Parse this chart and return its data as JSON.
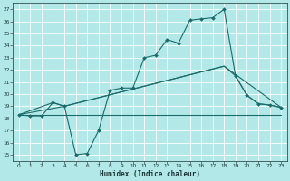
{
  "xlabel": "Humidex (Indice chaleur)",
  "bg_color": "#b3e8e8",
  "grid_color": "#ffffff",
  "line_color": "#1a6b6b",
  "xlim": [
    -0.5,
    23.5
  ],
  "ylim": [
    14.5,
    27.5
  ],
  "xticks": [
    0,
    1,
    2,
    3,
    4,
    5,
    6,
    7,
    8,
    9,
    10,
    11,
    12,
    13,
    14,
    15,
    16,
    17,
    18,
    19,
    20,
    21,
    22,
    23
  ],
  "yticks": [
    15,
    16,
    17,
    18,
    19,
    20,
    21,
    22,
    23,
    24,
    25,
    26,
    27
  ],
  "line1_x": [
    0,
    1,
    2,
    3,
    4,
    5,
    6,
    7,
    8,
    9,
    10,
    11,
    12,
    13,
    14,
    15,
    16,
    17,
    18,
    19,
    20,
    21,
    22,
    23
  ],
  "line1_y": [
    18.3,
    18.2,
    18.2,
    19.3,
    19.0,
    15.0,
    15.1,
    17.0,
    20.3,
    20.5,
    20.5,
    23.0,
    23.2,
    24.5,
    24.2,
    26.1,
    26.2,
    26.3,
    27.0,
    21.5,
    19.9,
    19.2,
    19.1,
    18.9
  ],
  "line2_x": [
    0,
    3,
    4,
    18,
    19,
    20,
    21,
    22,
    23
  ],
  "line2_y": [
    18.3,
    19.3,
    19.0,
    22.3,
    21.5,
    19.9,
    19.2,
    19.1,
    18.9
  ],
  "line3_x": [
    0,
    4,
    18,
    23
  ],
  "line3_y": [
    18.3,
    19.0,
    22.3,
    18.9
  ],
  "line4_x": [
    0,
    4,
    18,
    23
  ],
  "line4_y": [
    18.3,
    18.3,
    18.3,
    18.3
  ]
}
